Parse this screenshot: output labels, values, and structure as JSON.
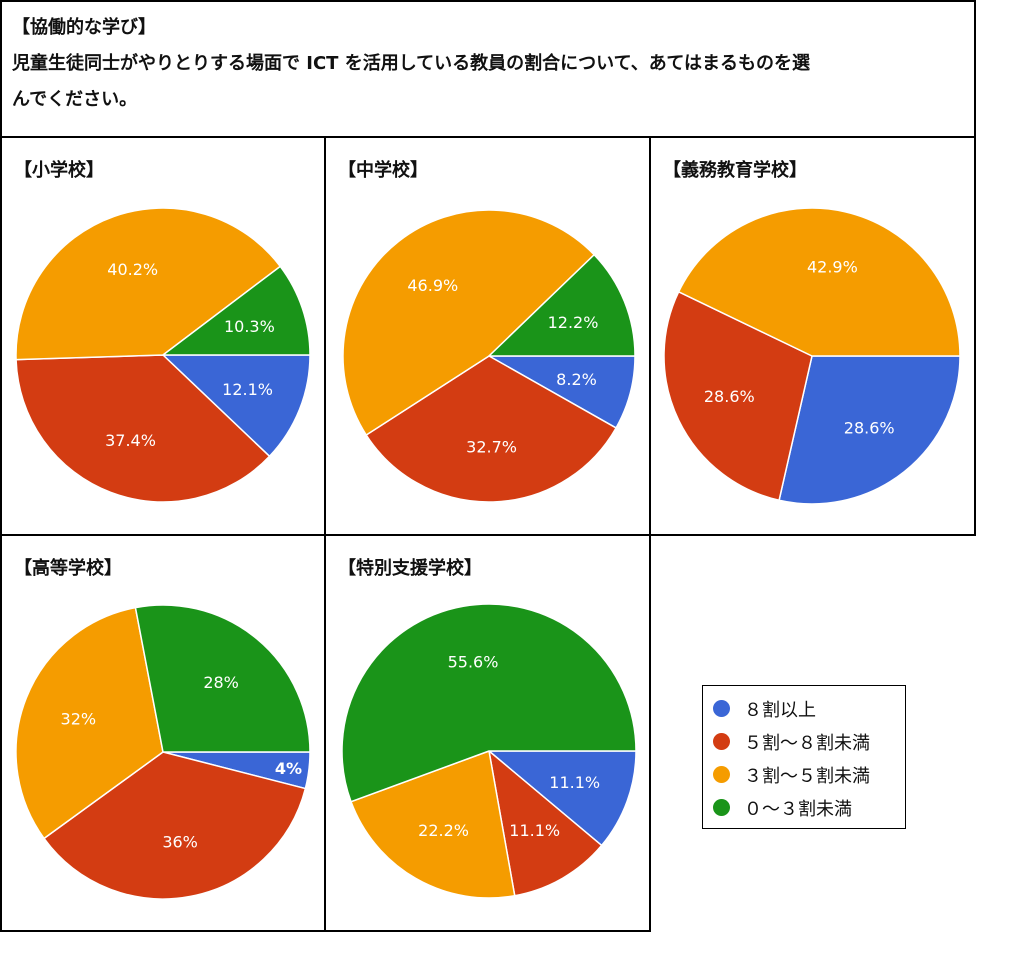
{
  "header": {
    "title": "【協働的な学び】",
    "question_line1": "児童生徒同士がやりとりする場面で ICT を活用している教員の割合について、あてはまるものを選",
    "question_line2": "んでください。"
  },
  "colors": {
    "8wari_ijou": "#3a66d6",
    "5to8": "#d33c12",
    "3to5": "#f59c00",
    "0to3": "#1a9419"
  },
  "legend": [
    {
      "label": "８割以上",
      "color": "#3a66d6"
    },
    {
      "label": "５割～８割未満",
      "color": "#d33c12"
    },
    {
      "label": "３割～５割未満",
      "color": "#f59c00"
    },
    {
      "label": "０～３割未満",
      "color": "#1a9419"
    }
  ],
  "chart_data": [
    {
      "type": "pie",
      "title": "【小学校】",
      "categories": [
        "８割以上",
        "５割～８割未満",
        "３割～５割未満",
        "０～３割未満"
      ],
      "values": [
        12.1,
        37.4,
        40.2,
        10.3
      ],
      "labels": [
        "12.1%",
        "37.4%",
        "40.2%",
        "10.3%"
      ]
    },
    {
      "type": "pie",
      "title": "【中学校】",
      "categories": [
        "８割以上",
        "５割～８割未満",
        "３割～５割未満",
        "０～３割未満"
      ],
      "values": [
        8.2,
        32.7,
        46.9,
        12.2
      ],
      "labels": [
        "8.2%",
        "32.7%",
        "46.9%",
        "12.2%"
      ]
    },
    {
      "type": "pie",
      "title": "【義務教育学校】",
      "categories": [
        "８割以上",
        "５割～８割未満",
        "３割～５割未満",
        "０～３割未満"
      ],
      "values": [
        28.6,
        28.6,
        42.9,
        0
      ],
      "labels": [
        "28.6%",
        "28.6%",
        "42.9%",
        ""
      ]
    },
    {
      "type": "pie",
      "title": "【高等学校】",
      "categories": [
        "８割以上",
        "５割～８割未満",
        "３割～５割未満",
        "０～３割未満"
      ],
      "values": [
        4,
        36,
        32,
        28
      ],
      "labels": [
        "4%",
        "36%",
        "32%",
        "28%"
      ]
    },
    {
      "type": "pie",
      "title": "【特別支援学校】",
      "categories": [
        "８割以上",
        "５割～８割未満",
        "３割～５割未満",
        "０～３割未満"
      ],
      "values": [
        11.1,
        11.1,
        22.2,
        55.6
      ],
      "labels": [
        "11.1%",
        "11.1%",
        "22.2%",
        "55.6%"
      ]
    }
  ]
}
